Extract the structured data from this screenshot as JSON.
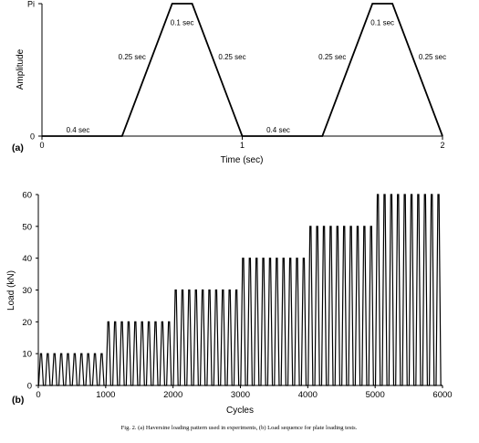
{
  "chart_data": [
    {
      "type": "line",
      "panel_label": "(a)",
      "xlabel": "Time (sec)",
      "ylabel": "Amplitude",
      "x_ticks": [
        "0",
        "1",
        "2"
      ],
      "y_ticks": [
        "0",
        "Pi"
      ],
      "xlim": [
        0,
        2
      ],
      "ylim": [
        0,
        1
      ],
      "series": [
        {
          "x": [
            0,
            0.4,
            0.65,
            0.75,
            1.0,
            1.4,
            1.65,
            1.75,
            2.0
          ],
          "y": [
            0,
            0,
            1,
            1,
            0,
            0,
            1,
            1,
            0
          ]
        }
      ],
      "annotations": [
        {
          "text": "0.4 sec",
          "x": 0.18,
          "y": 0.05
        },
        {
          "text": "0.25 sec",
          "x": 0.45,
          "y": 0.6
        },
        {
          "text": "0.1 sec",
          "x": 0.7,
          "y": 0.86
        },
        {
          "text": "0.25 sec",
          "x": 0.95,
          "y": 0.6
        },
        {
          "text": "0.4 sec",
          "x": 1.18,
          "y": 0.05
        },
        {
          "text": "0.25 sec",
          "x": 1.45,
          "y": 0.6
        },
        {
          "text": "0.1 sec",
          "x": 1.7,
          "y": 0.86
        },
        {
          "text": "0.25 sec",
          "x": 1.95,
          "y": 0.6
        }
      ]
    },
    {
      "type": "line",
      "panel_label": "(b)",
      "xlabel": "Cycles",
      "ylabel": "Load (kN)",
      "x_ticks": [
        "0",
        "1000",
        "2000",
        "3000",
        "4000",
        "5000",
        "6000"
      ],
      "y_ticks": [
        "0",
        "10",
        "20",
        "30",
        "40",
        "50",
        "60"
      ],
      "xlim": [
        0,
        6000
      ],
      "ylim": [
        0,
        60
      ],
      "load_steps": [
        {
          "load": 10,
          "cycles": 10
        },
        {
          "load": 20,
          "cycles": 10
        },
        {
          "load": 30,
          "cycles": 10
        },
        {
          "load": 40,
          "cycles": 10
        },
        {
          "load": 50,
          "cycles": 10
        },
        {
          "load": 60,
          "cycles": 10
        }
      ],
      "cycles_per_step": 1000
    }
  ],
  "caption": "Fig. 2. (a) Haversine loading pattern used in experiments, (b) Load sequence for plate loading tests."
}
